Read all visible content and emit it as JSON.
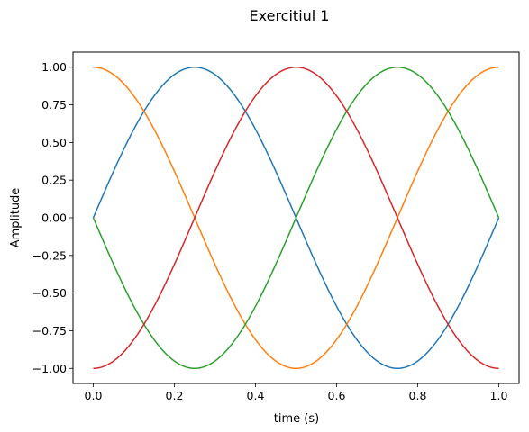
{
  "chart_data": {
    "type": "line",
    "title": "Exercitiul 1",
    "xlabel": "time (s)",
    "ylabel": "Amplitude",
    "xlim": [
      -0.05,
      1.05
    ],
    "ylim": [
      -1.1,
      1.1
    ],
    "x_ticks": [
      0.0,
      0.2,
      0.4,
      0.6,
      0.8,
      1.0
    ],
    "x_tick_labels": [
      "0.0",
      "0.2",
      "0.4",
      "0.6",
      "0.8",
      "1.0"
    ],
    "y_ticks": [
      -1.0,
      -0.75,
      -0.5,
      -0.25,
      0.0,
      0.25,
      0.5,
      0.75,
      1.0
    ],
    "y_tick_labels": [
      "−1.00",
      "−0.75",
      "−0.50",
      "−0.25",
      "0.00",
      "0.25",
      "0.50",
      "0.75",
      "1.00"
    ],
    "grid": false,
    "x": [
      0.0,
      0.125,
      0.25,
      0.375,
      0.5,
      0.625,
      0.75,
      0.875,
      1.0
    ],
    "series": [
      {
        "color": "#1f77b4",
        "values": [
          0.0,
          0.707,
          1.0,
          0.707,
          0.0,
          -0.707,
          -1.0,
          -0.707,
          0.0
        ]
      },
      {
        "color": "#ff7f0e",
        "values": [
          1.0,
          0.707,
          0.0,
          -0.707,
          -1.0,
          -0.707,
          0.0,
          0.707,
          1.0
        ]
      },
      {
        "color": "#2ca02c",
        "values": [
          0.0,
          -0.707,
          -1.0,
          -0.707,
          0.0,
          0.707,
          1.0,
          0.707,
          0.0
        ]
      },
      {
        "color": "#d62728",
        "values": [
          -1.0,
          -0.707,
          0.0,
          0.707,
          1.0,
          0.707,
          0.0,
          -0.707,
          -1.0
        ]
      }
    ]
  }
}
